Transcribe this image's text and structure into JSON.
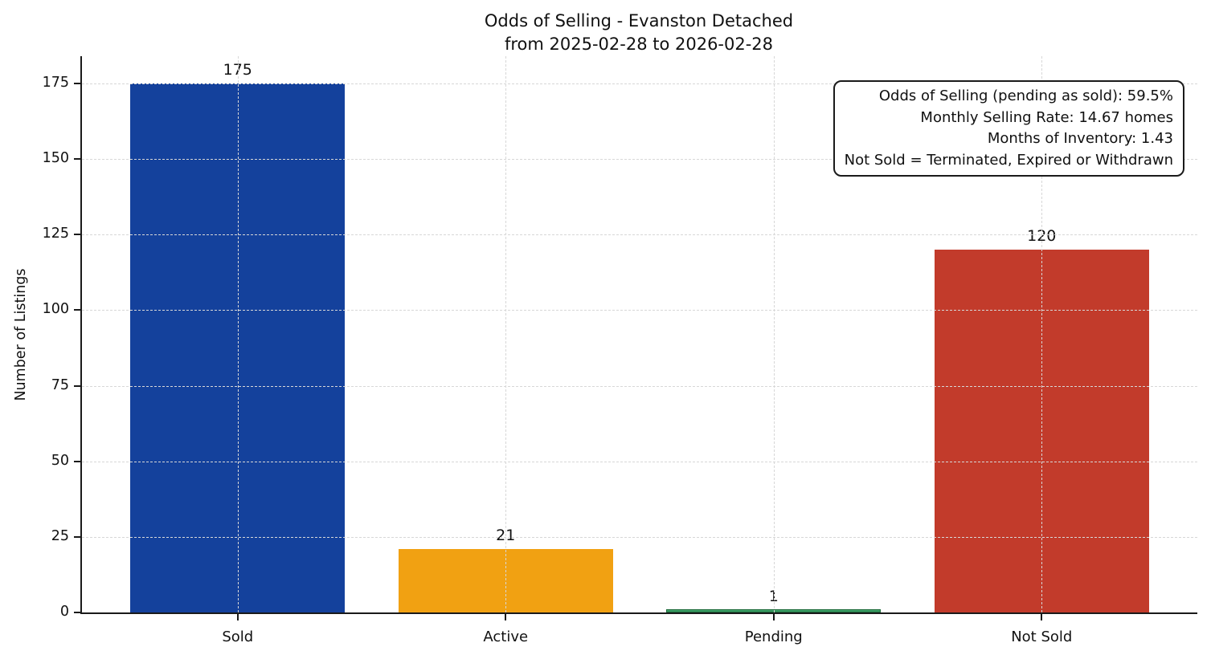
{
  "chart_data": {
    "type": "bar",
    "title": "Odds of Selling - Evanston Detached",
    "subtitle": "from 2025-02-28 to 2026-02-28",
    "categories": [
      "Sold",
      "Active",
      "Pending",
      "Not Sold"
    ],
    "values": [
      175,
      21,
      1,
      120
    ],
    "bar_colors": [
      "#14419c",
      "#f1a112",
      "#3d9e66",
      "#c23b2b"
    ],
    "bar_edge_colors": [
      null,
      null,
      "#1d6b3a",
      null
    ],
    "xlabel": "",
    "ylabel": "Number of Listings",
    "ylim": [
      0,
      184
    ],
    "yticks": [
      0,
      25,
      50,
      75,
      100,
      125,
      150,
      175
    ],
    "legend": "none",
    "grid": {
      "style": "dashed",
      "color": "#d7d7d7",
      "axes": "both",
      "drawn_above_bars": true
    },
    "annotation": {
      "position": "top-right",
      "align": "right",
      "lines": [
        "Odds of Selling (pending as sold): 59.5%",
        "Monthly Selling Rate: 14.67 homes",
        "Months of Inventory: 1.43",
        "Not Sold = Terminated, Expired or Withdrawn"
      ]
    }
  }
}
